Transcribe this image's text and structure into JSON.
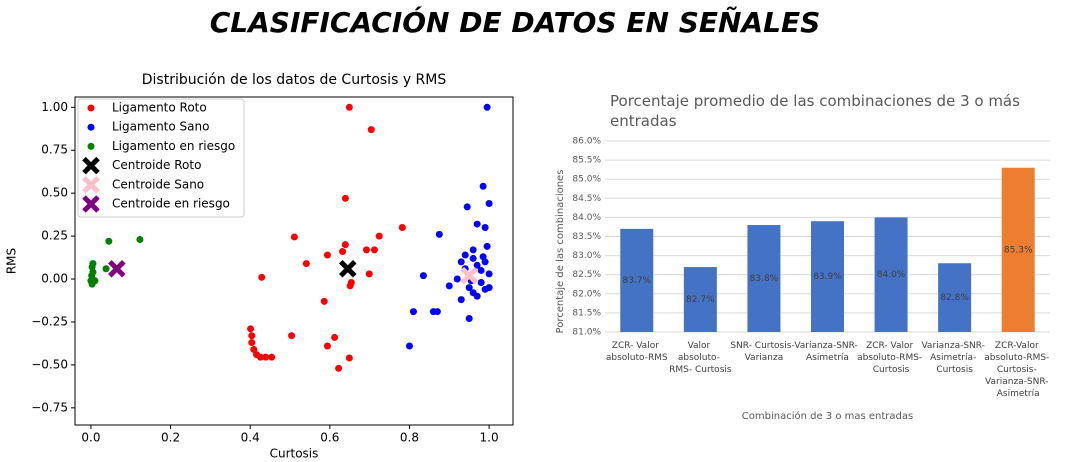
{
  "title": "CLASIFICACIÓN DE DATOS EN SEÑALES",
  "chart_data": [
    {
      "type": "scatter",
      "title": "Distribución de los datos de Curtosis y RMS",
      "x_label": "Curtosis",
      "y_label": "RMS",
      "xlim": [
        -0.04,
        1.06
      ],
      "ylim": [
        -0.85,
        1.06
      ],
      "xticks": [
        {
          "value": 0,
          "label": "0.0"
        },
        0.2,
        0.4,
        0.6,
        0.8,
        {
          "value": 1,
          "label": "1.0"
        }
      ],
      "yticks": [
        {
          "value": -0.75,
          "label": "−0.75"
        },
        {
          "value": -0.5,
          "label": "−0.50"
        },
        {
          "value": -0.25,
          "label": "−0.25"
        },
        {
          "value": 0,
          "label": "0.00"
        },
        {
          "value": 0.25,
          "label": "0.25"
        },
        {
          "value": 0.5,
          "label": "0.50"
        },
        {
          "value": 0.75,
          "label": "0.75"
        },
        {
          "value": 1,
          "label": "1.00"
        }
      ],
      "legend": "upper left",
      "series": [
        {
          "name": "Ligamento Roto",
          "color": "#ff0000",
          "marker": "circle",
          "x": [
            0.649,
            0.704,
            0.639,
            0.511,
            0.782,
            0.724,
            0.692,
            0.712,
            0.639,
            0.632,
            0.594,
            0.541,
            0.429,
            0.654,
            0.699,
            0.586,
            0.651,
            0.504,
            0.612,
            0.594,
            0.622,
            0.649,
            0.401,
            0.404,
            0.404,
            0.409,
            0.416,
            0.426,
            0.439,
            0.454
          ],
          "y": [
            1.0,
            0.87,
            0.47,
            0.245,
            0.3,
            0.25,
            0.17,
            0.17,
            0.2,
            0.16,
            0.14,
            0.09,
            0.01,
            -0.02,
            0.03,
            -0.13,
            -0.04,
            -0.33,
            -0.34,
            -0.39,
            -0.52,
            -0.46,
            -0.29,
            -0.33,
            -0.37,
            -0.41,
            -0.44,
            -0.455,
            -0.455,
            -0.455
          ]
        },
        {
          "name": "Ligamento Sano",
          "color": "#0000ff",
          "marker": "circle",
          "x": [
            0.995,
            0.985,
            1.0,
            0.945,
            0.97,
            0.99,
            0.875,
            0.995,
            0.81,
            0.8,
            0.86,
            0.87,
            0.835,
            0.95,
            0.93,
            0.94,
            0.96,
            0.97,
            0.98,
            0.99,
            1.0,
            0.92,
            0.95,
            0.96,
            0.98,
            0.99,
            0.94,
            0.97,
            0.9,
            0.93,
            0.96,
            1.0,
            0.985,
            0.955
          ],
          "y": [
            1.0,
            0.54,
            0.44,
            0.42,
            0.32,
            0.3,
            0.26,
            0.19,
            -0.19,
            -0.39,
            -0.19,
            -0.19,
            0.02,
            -0.23,
            0.1,
            0.14,
            0.12,
            0.08,
            0.05,
            0.1,
            0.03,
            0.0,
            -0.05,
            -0.08,
            -0.02,
            -0.06,
            0.06,
            -0.1,
            -0.04,
            -0.12,
            0.17,
            -0.05,
            0.13,
            -0.01
          ]
        },
        {
          "name": "Ligamento en riesgo",
          "color": "#008000",
          "marker": "circle",
          "x": [
            0.003,
            0.005,
            0.002,
            0.0,
            0.003,
            0.01,
            0.005,
            0.038,
            0.045,
            0.123
          ],
          "y": [
            0.07,
            0.09,
            0.02,
            -0.01,
            -0.03,
            -0.01,
            0.04,
            0.06,
            0.22,
            0.23
          ]
        },
        {
          "name": "Centroide Roto",
          "color": "#000000",
          "marker": "X",
          "x": [
            0.645
          ],
          "y": [
            0.06
          ]
        },
        {
          "name": "Centroide Sano",
          "color": "#ffc0cb",
          "marker": "X",
          "x": [
            0.95
          ],
          "y": [
            0.02
          ]
        },
        {
          "name": "Centroide en riesgo",
          "color": "#800080",
          "marker": "X",
          "x": [
            0.065
          ],
          "y": [
            0.06
          ]
        }
      ]
    },
    {
      "type": "bar",
      "title": "Porcentaje promedio de las combinaciones de 3 o más\nentradas",
      "x_label": "Combinación de 3 o mas entradas",
      "y_label": "Porcentaje de las combinaciones",
      "categories": [
        "ZCR- Valor\nabsoluto-RMS",
        "Valor\nabsoluto-\nRMS- Curtosis",
        "SNR- Curtosis-\nVarianza",
        "Varianza-SNR-\nAsimetría",
        "ZCR- Valor\nabsoluto-RMS-\nCurtosis",
        "Varianza-SNR-\nAsimetría-\nCurtosis",
        "ZCR-Valor\nabsoluto-RMS-\nCurtosis-\nVarianza-SNR-\nAsimetría"
      ],
      "values": [
        83.7,
        82.7,
        83.8,
        83.9,
        84.0,
        82.8,
        85.3
      ],
      "value_labels": [
        "83.7%",
        "82.7%",
        "83.8%",
        "83.9%",
        "84.0%",
        "82.8%",
        "85.3%"
      ],
      "colors": [
        "#4472c4",
        "#4472c4",
        "#4472c4",
        "#4472c4",
        "#4472c4",
        "#4472c4",
        "#ed7d31"
      ],
      "ylim": [
        81,
        86
      ],
      "yticks": [
        {
          "value": 81,
          "label": "81.0%"
        },
        {
          "value": 81.5,
          "label": "81.5%"
        },
        {
          "value": 82,
          "label": "82.0%"
        },
        {
          "value": 82.5,
          "label": "82.5%"
        },
        {
          "value": 83,
          "label": "83.0%"
        },
        {
          "value": 83.5,
          "label": "83.5%"
        },
        {
          "value": 84,
          "label": "84.0%"
        },
        {
          "value": 84.5,
          "label": "84.5%"
        },
        {
          "value": 85,
          "label": "85.0%"
        },
        {
          "value": 85.5,
          "label": "85.5%"
        },
        {
          "value": 86,
          "label": "86.0%"
        }
      ],
      "grid": true
    }
  ]
}
